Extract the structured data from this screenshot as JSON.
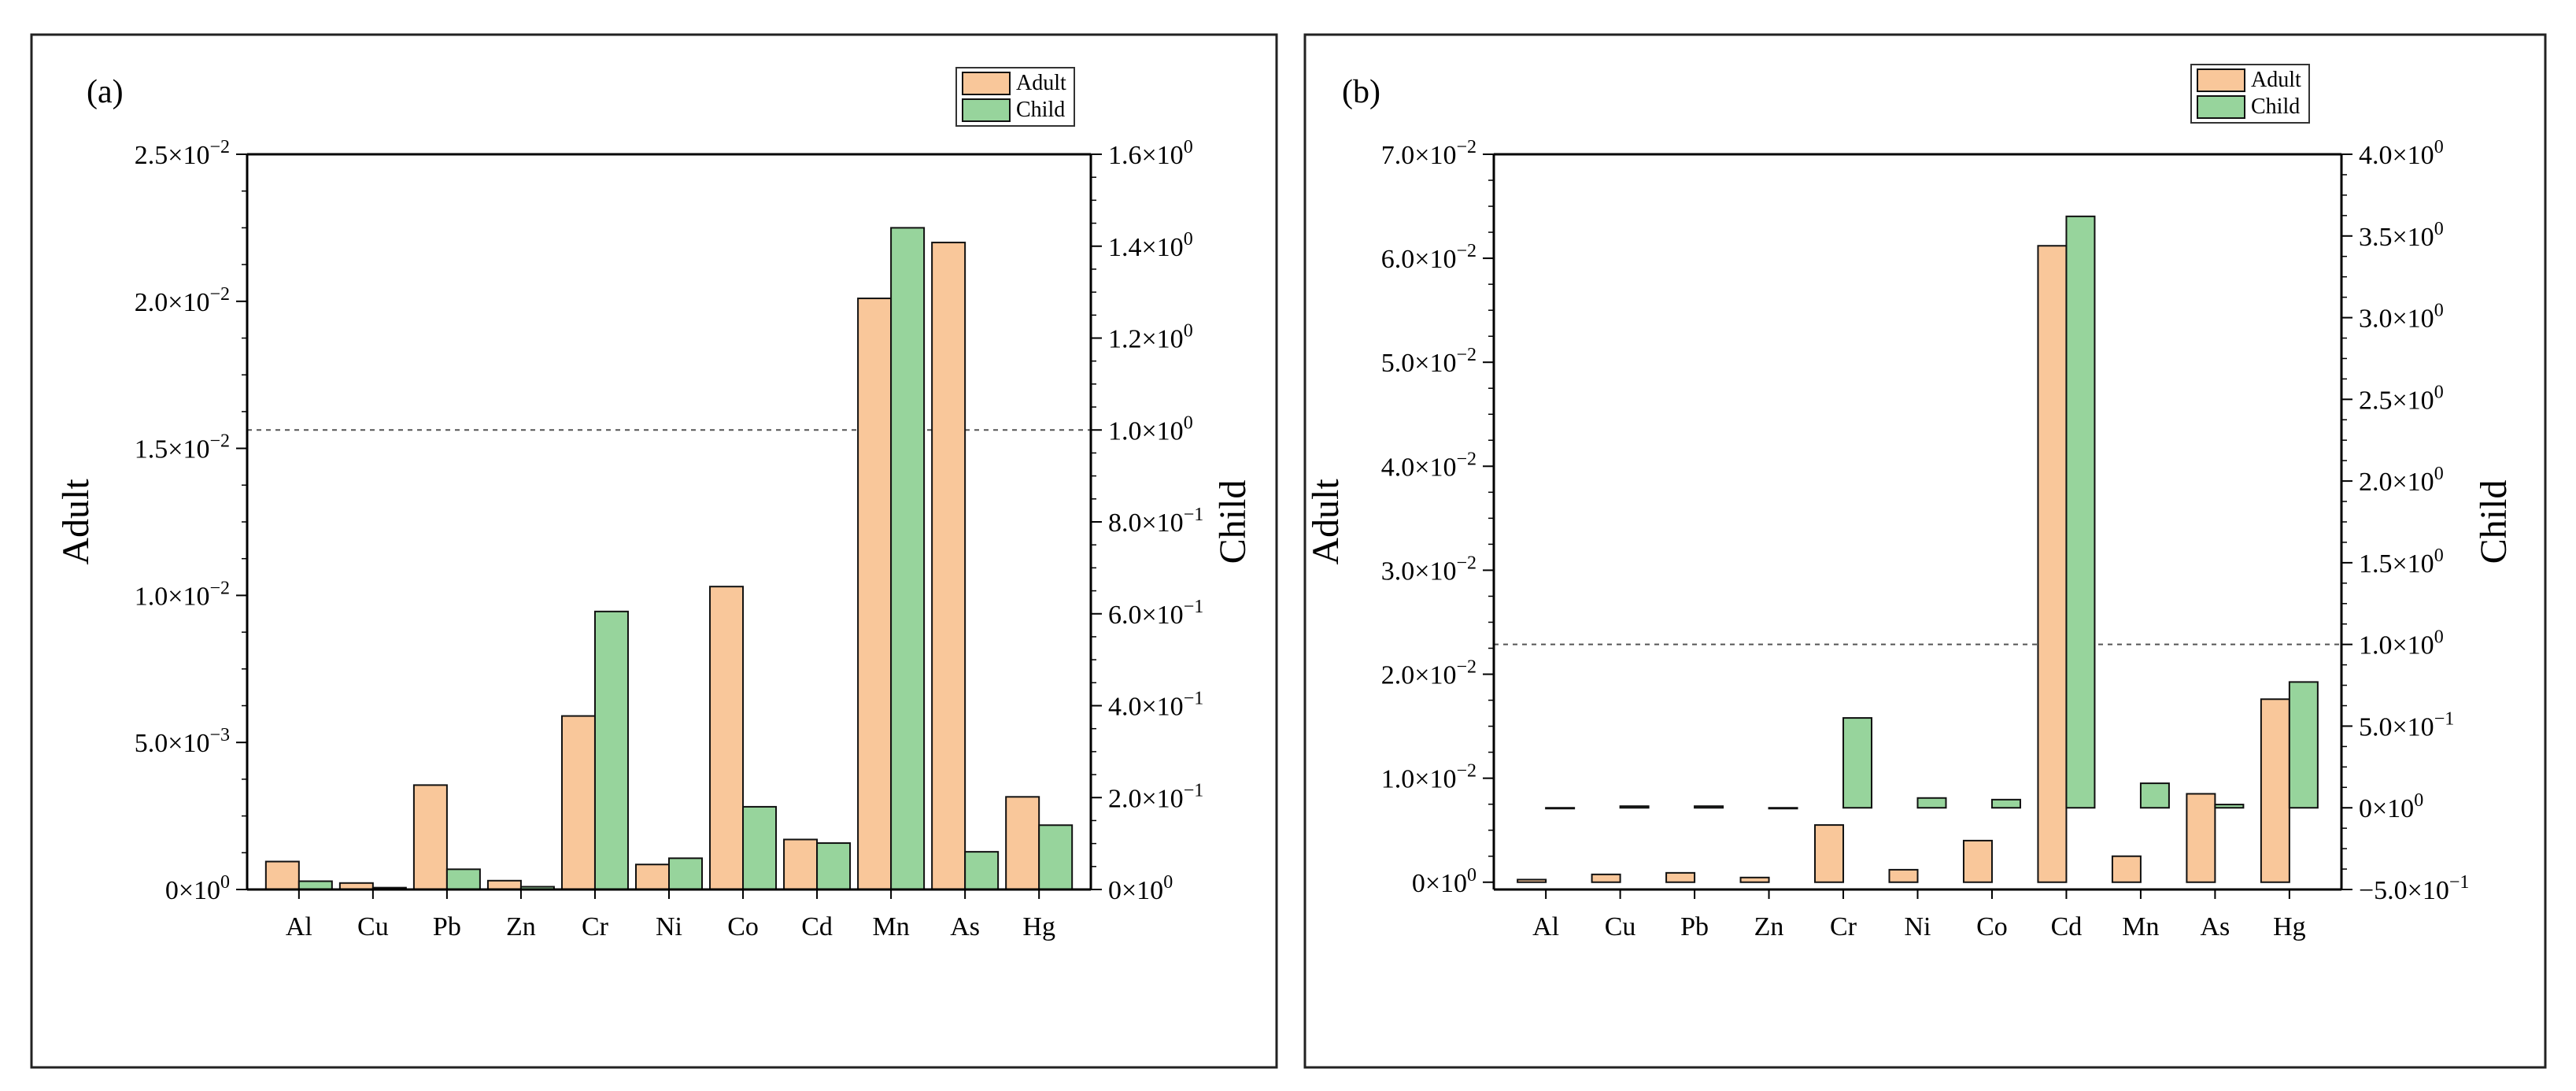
{
  "colors": {
    "adult": "#f9c79a",
    "child": "#97d49c",
    "edge": "#111111"
  },
  "chart_data": [
    {
      "type": "bar",
      "panel_label": "(a)",
      "categories": [
        "Al",
        "Cu",
        "Pb",
        "Zn",
        "Cr",
        "Ni",
        "Co",
        "Cd",
        "Mn",
        "As",
        "Hg"
      ],
      "ylabel": "Adult",
      "y2label": "Child",
      "legend": [
        "Adult",
        "Child"
      ],
      "legend_position": "top-right",
      "ylim": [
        0,
        0.025
      ],
      "yticks": [
        0,
        0.005,
        0.01,
        0.015,
        0.02,
        0.025
      ],
      "yticklabels": [
        [
          "0",
          "0"
        ],
        [
          "5.0",
          "-3"
        ],
        [
          "1.0",
          "-2"
        ],
        [
          "1.5",
          "-2"
        ],
        [
          "2.0",
          "-2"
        ],
        [
          "2.5",
          "-2"
        ]
      ],
      "y2lim": [
        0,
        1.6
      ],
      "y2ticks": [
        0,
        0.2,
        0.4,
        0.6,
        0.8,
        1.0,
        1.2,
        1.4,
        1.6
      ],
      "y2ticklabels": [
        [
          "0",
          "0"
        ],
        [
          "2.0",
          "-1"
        ],
        [
          "4.0",
          "-1"
        ],
        [
          "6.0",
          "-1"
        ],
        [
          "8.0",
          "-1"
        ],
        [
          "1.0",
          "0"
        ],
        [
          "1.2",
          "0"
        ],
        [
          "1.4",
          "0"
        ],
        [
          "1.6",
          "0"
        ]
      ],
      "reference_line_child": 1.0,
      "series": [
        {
          "name": "Adult",
          "axis": "left",
          "values": [
            0.00095,
            0.00022,
            0.00355,
            0.0003,
            0.0059,
            0.00085,
            0.0103,
            0.0017,
            0.0201,
            0.022,
            0.00315
          ]
        },
        {
          "name": "Child",
          "axis": "right",
          "values": [
            0.018,
            0.004,
            0.044,
            0.006,
            0.605,
            0.068,
            0.18,
            0.101,
            1.44,
            0.082,
            0.14
          ]
        }
      ]
    },
    {
      "type": "bar",
      "panel_label": "(b)",
      "categories": [
        "Al",
        "Cu",
        "Pb",
        "Zn",
        "Cr",
        "Ni",
        "Co",
        "Cd",
        "Mn",
        "As",
        "Hg"
      ],
      "ylabel": "Adult",
      "y2label": "Child",
      "legend": [
        "Adult",
        "Child"
      ],
      "legend_position": "top-right",
      "ylim": [
        -0.0007,
        0.07
      ],
      "yticks": [
        0,
        0.01,
        0.02,
        0.03,
        0.04,
        0.05,
        0.06,
        0.07
      ],
      "yticklabels": [
        [
          "0",
          "0"
        ],
        [
          "1.0",
          "-2"
        ],
        [
          "2.0",
          "-2"
        ],
        [
          "3.0",
          "-2"
        ],
        [
          "4.0",
          "-2"
        ],
        [
          "5.0",
          "-2"
        ],
        [
          "6.0",
          "-2"
        ],
        [
          "7.0",
          "-2"
        ]
      ],
      "y2lim": [
        -0.5,
        4.0
      ],
      "y2ticks": [
        -0.5,
        0,
        0.5,
        1.0,
        1.5,
        2.0,
        2.5,
        3.0,
        3.5,
        4.0
      ],
      "y2ticklabels": [
        [
          "−5.0",
          "-1"
        ],
        [
          "0",
          "0"
        ],
        [
          "5.0",
          "-1"
        ],
        [
          "1.0",
          "0"
        ],
        [
          "1.5",
          "0"
        ],
        [
          "2.0",
          "0"
        ],
        [
          "2.5",
          "0"
        ],
        [
          "3.0",
          "0"
        ],
        [
          "3.5",
          "0"
        ],
        [
          "4.0",
          "0"
        ]
      ],
      "reference_line_child": 1.0,
      "series": [
        {
          "name": "Adult",
          "axis": "left",
          "values": [
            0.00025,
            0.00075,
            0.0009,
            0.00045,
            0.0055,
            0.0012,
            0.004,
            0.0612,
            0.0025,
            0.0085,
            0.0176
          ]
        },
        {
          "name": "Child",
          "axis": "right",
          "values": [
            0.0,
            0.01,
            0.01,
            0.0,
            0.55,
            0.06,
            0.05,
            3.62,
            0.15,
            0.02,
            0.77
          ]
        }
      ]
    }
  ]
}
